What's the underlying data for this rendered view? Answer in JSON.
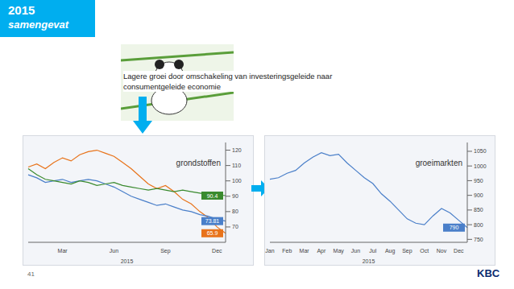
{
  "title": "2015",
  "subtitle": "samengevat",
  "text": "Lagere groei door omschakeling van investeringsgeleide naar consumentgeleide economie",
  "page": "41",
  "logo": "KBC",
  "chart_data": [
    {
      "type": "line",
      "annotation": "grondstoffen",
      "xlabel": "2015",
      "categories": [
        null,
        null,
        null,
        null,
        "Mar",
        null,
        null,
        null,
        null,
        null,
        "Jun",
        null,
        null,
        null,
        null,
        null,
        "Sep",
        null,
        null,
        null,
        null,
        null,
        "Dec",
        null
      ],
      "series": [
        {
          "color": "#e8731a",
          "values": [
            109,
            111,
            108,
            112,
            115,
            113,
            117,
            119,
            120,
            118,
            116,
            112,
            108,
            103,
            98,
            95,
            97,
            93,
            88,
            85,
            80,
            76,
            70,
            65.9
          ]
        },
        {
          "color": "#4a7fc9",
          "values": [
            104,
            102,
            99,
            100,
            101,
            99,
            100,
            101,
            100,
            98,
            96,
            93,
            90,
            88,
            86,
            84,
            85,
            83,
            81,
            80,
            78,
            77,
            75,
            73.81
          ]
        },
        {
          "color": "#3a8a2e",
          "values": [
            108,
            104,
            101,
            100,
            99,
            98,
            100,
            99,
            97,
            98,
            99,
            97,
            96,
            95,
            94,
            95,
            94,
            93,
            94,
            93,
            92,
            91,
            91,
            90.4
          ]
        }
      ],
      "ylim": [
        60,
        125
      ],
      "yticks": [
        70,
        80,
        90,
        100,
        110,
        120
      ],
      "grid": false
    },
    {
      "type": "line",
      "annotation": "groeimarkten",
      "xlabel": "2015",
      "categories": [
        "Jan",
        null,
        "Feb",
        null,
        "Mar",
        null,
        "Apr",
        null,
        "May",
        null,
        "Jun",
        null,
        "Jul",
        null,
        "Aug",
        null,
        "Sep",
        null,
        "Oct",
        null,
        "Nov",
        null,
        "Dec",
        null
      ],
      "series": [
        {
          "color": "#4a7fc9",
          "values": [
            955,
            960,
            975,
            985,
            1010,
            1030,
            1045,
            1035,
            1040,
            1010,
            985,
            960,
            940,
            905,
            880,
            850,
            820,
            805,
            800,
            830,
            855,
            840,
            815,
            790
          ]
        }
      ],
      "ylim": [
        740,
        1080
      ],
      "yticks": [
        750,
        800,
        850,
        900,
        950,
        1000,
        1050
      ],
      "grid": false
    }
  ]
}
